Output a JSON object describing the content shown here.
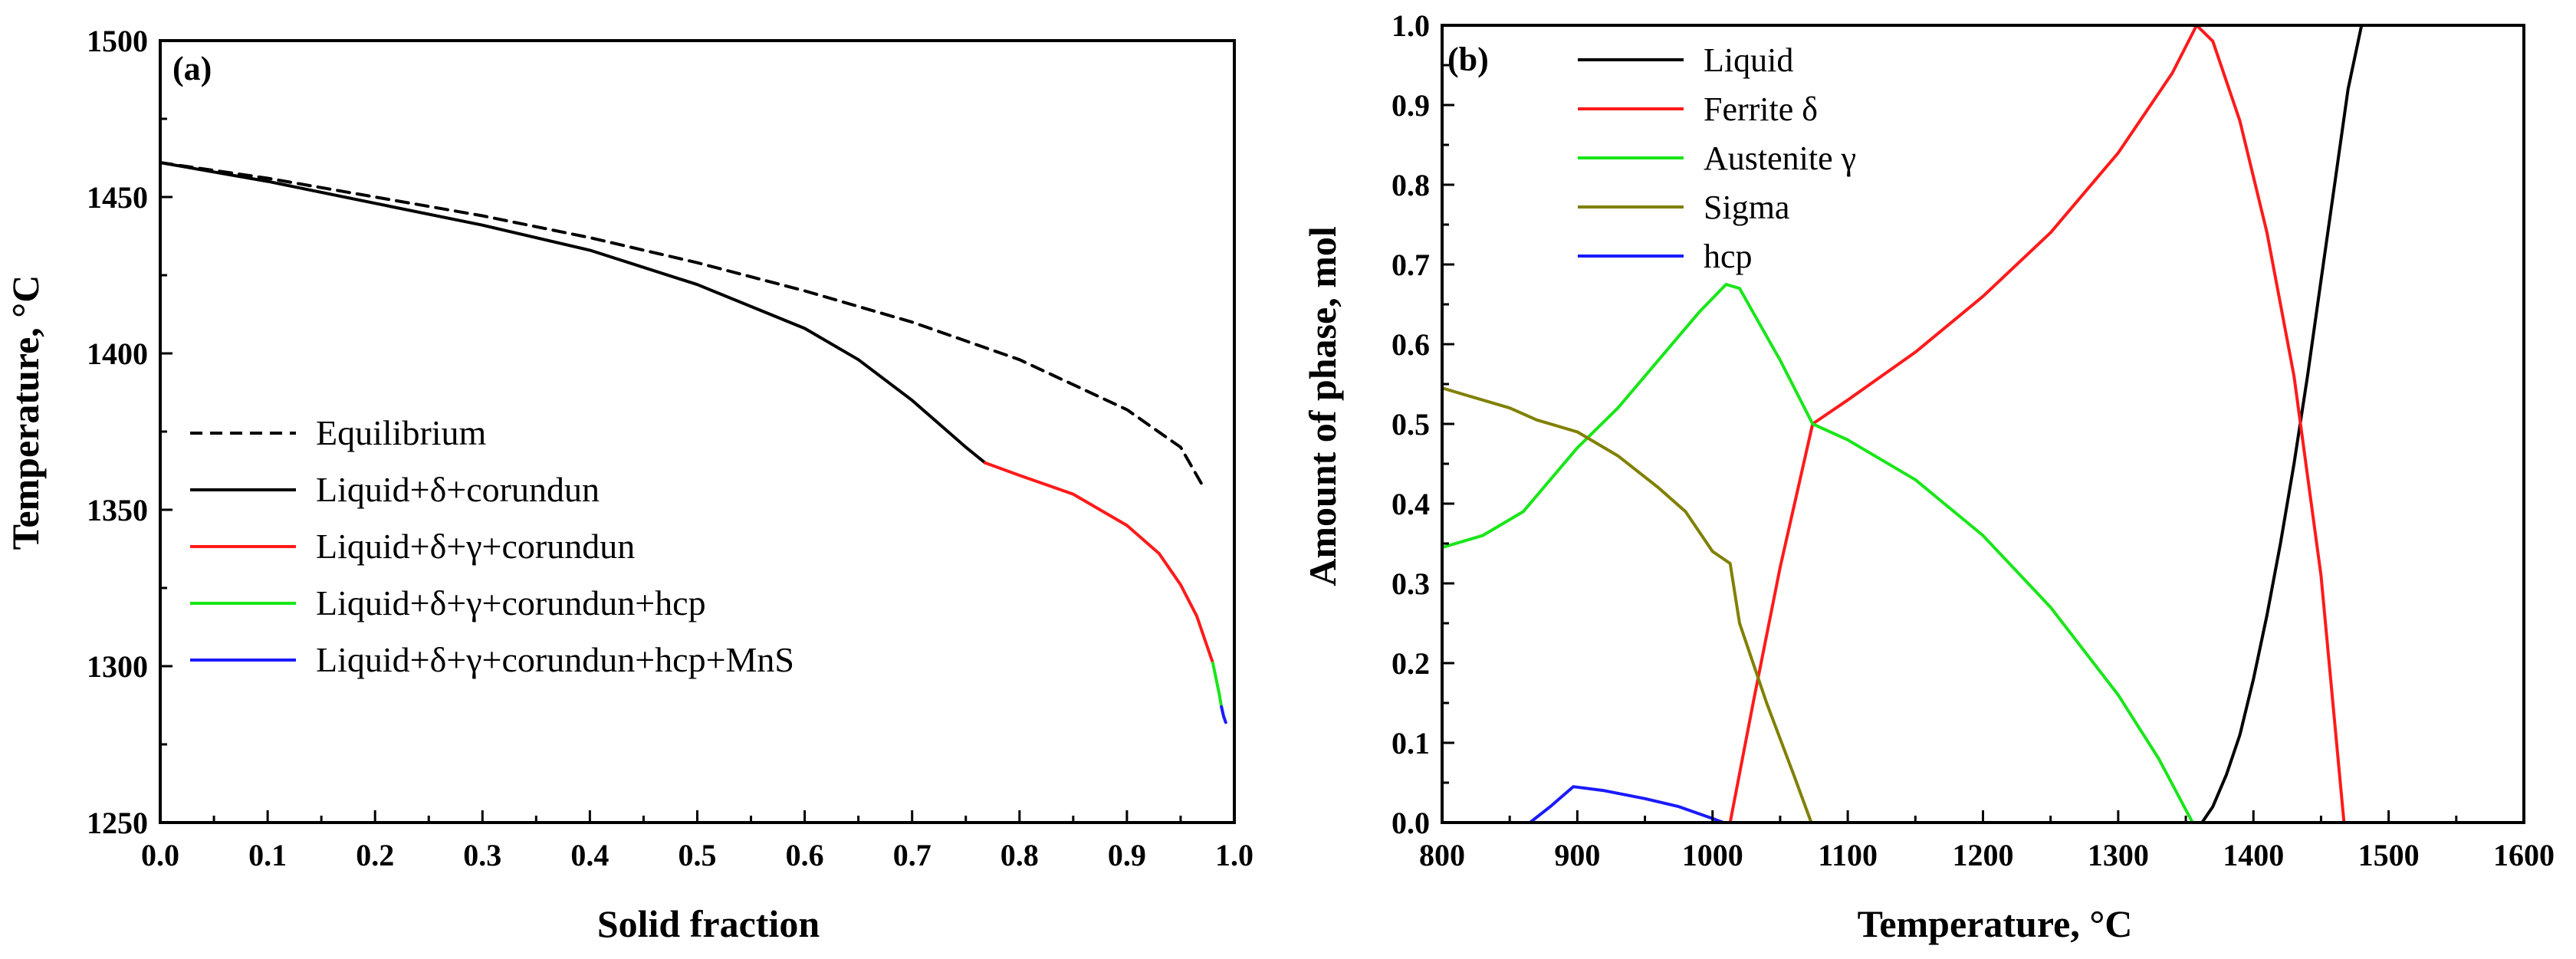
{
  "chart_data": [
    {
      "type": "line",
      "panel_label": "(a)",
      "xlabel": "Solid fraction",
      "ylabel": "Temperature, °C",
      "xlim": [
        0.0,
        1.0
      ],
      "ylim": [
        1250,
        1500
      ],
      "xticks": [
        "0.0",
        "0.1",
        "0.2",
        "0.3",
        "0.4",
        "0.5",
        "0.6",
        "0.7",
        "0.8",
        "0.9",
        "1.0"
      ],
      "yticks": [
        "1250",
        "1300",
        "1350",
        "1400",
        "1450",
        "1500"
      ],
      "legend_position": "center-left",
      "series": [
        {
          "name": "Equilibrium",
          "color": "#000000",
          "dash": "dashed",
          "x": [
            0.0,
            0.1,
            0.2,
            0.3,
            0.4,
            0.5,
            0.6,
            0.7,
            0.8,
            0.9,
            0.95,
            0.97
          ],
          "y": [
            1461,
            1456,
            1450,
            1444,
            1437,
            1429,
            1420,
            1410,
            1398,
            1382,
            1370,
            1358
          ]
        },
        {
          "name": "Liquid+δ+corundun",
          "color": "#000000",
          "dash": "solid",
          "x": [
            0.0,
            0.1,
            0.2,
            0.3,
            0.4,
            0.5,
            0.6,
            0.65,
            0.7,
            0.73,
            0.75,
            0.768
          ],
          "y": [
            1461,
            1455,
            1448,
            1441,
            1433,
            1422,
            1408,
            1398,
            1385,
            1376,
            1370,
            1365
          ]
        },
        {
          "name": "Liquid+δ+γ+corundun",
          "color": "#ff1a1a",
          "dash": "solid",
          "x": [
            0.768,
            0.8,
            0.85,
            0.9,
            0.93,
            0.95,
            0.965,
            0.975,
            0.98
          ],
          "y": [
            1365,
            1361,
            1355,
            1345,
            1336,
            1326,
            1316,
            1306,
            1301
          ]
        },
        {
          "name": "Liquid+δ+γ+corundun+hcp",
          "color": "#19e619",
          "dash": "solid",
          "x": [
            0.98,
            0.983,
            0.986,
            0.988
          ],
          "y": [
            1301,
            1296,
            1291,
            1287
          ]
        },
        {
          "name": "Liquid+δ+γ+corundun+hcp+MnS",
          "color": "#1a1aff",
          "dash": "solid",
          "x": [
            0.988,
            0.99,
            0.992
          ],
          "y": [
            1287,
            1284,
            1282
          ]
        }
      ]
    },
    {
      "type": "line",
      "panel_label": "(b)",
      "xlabel": "Temperature, °C",
      "ylabel": "Amount of phase, mol",
      "xlim": [
        800,
        1600
      ],
      "ylim": [
        0.0,
        1.0
      ],
      "xticks": [
        "800",
        "900",
        "1000",
        "1100",
        "1200",
        "1300",
        "1400",
        "1500",
        "1600"
      ],
      "yticks": [
        "0.0",
        "0.1",
        "0.2",
        "0.3",
        "0.4",
        "0.5",
        "0.6",
        "0.7",
        "0.8",
        "0.9",
        "1.0"
      ],
      "legend_position": "top-left",
      "series": [
        {
          "name": "Liquid",
          "color": "#000000",
          "x": [
            1362,
            1370,
            1380,
            1390,
            1400,
            1410,
            1420,
            1430,
            1440,
            1450,
            1460,
            1470,
            1480
          ],
          "y": [
            0.0,
            0.02,
            0.06,
            0.11,
            0.18,
            0.26,
            0.35,
            0.45,
            0.56,
            0.68,
            0.8,
            0.92,
            1.0
          ]
        },
        {
          "name": "Ferrite δ",
          "color": "#ff1a1a",
          "x": [
            1013,
            1030,
            1050,
            1074,
            1100,
            1150,
            1200,
            1250,
            1300,
            1340,
            1358,
            1370,
            1390,
            1410,
            1430,
            1450,
            1467
          ],
          "y": [
            0.0,
            0.15,
            0.32,
            0.5,
            0.53,
            0.59,
            0.66,
            0.74,
            0.84,
            0.94,
            1.0,
            0.98,
            0.88,
            0.74,
            0.56,
            0.31,
            0.0
          ]
        },
        {
          "name": "Austenite γ",
          "color": "#19e619",
          "x": [
            800,
            830,
            860,
            880,
            900,
            930,
            960,
            990,
            1010,
            1020,
            1050,
            1074,
            1100,
            1150,
            1200,
            1250,
            1300,
            1330,
            1355
          ],
          "y": [
            0.345,
            0.36,
            0.39,
            0.43,
            0.47,
            0.52,
            0.58,
            0.64,
            0.675,
            0.67,
            0.58,
            0.5,
            0.48,
            0.43,
            0.36,
            0.27,
            0.16,
            0.08,
            0.0
          ]
        },
        {
          "name": "Sigma",
          "color": "#808000",
          "x": [
            800,
            850,
            870,
            900,
            930,
            960,
            980,
            1000,
            1013,
            1020,
            1040,
            1060,
            1073
          ],
          "y": [
            0.545,
            0.52,
            0.505,
            0.49,
            0.46,
            0.42,
            0.39,
            0.34,
            0.325,
            0.25,
            0.15,
            0.06,
            0.0
          ]
        },
        {
          "name": "hcp",
          "color": "#1a1aff",
          "x": [
            865,
            880,
            897,
            920,
            950,
            975,
            1000,
            1008
          ],
          "y": [
            0.0,
            0.02,
            0.045,
            0.04,
            0.03,
            0.02,
            0.005,
            0.0
          ]
        }
      ]
    }
  ]
}
